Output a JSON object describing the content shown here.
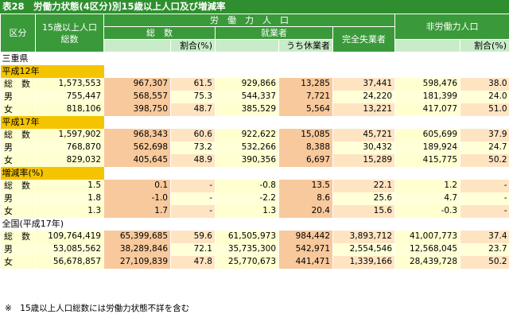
{
  "title": "表28　労働力状態(4区分)別15歳以上人口及び増減率",
  "headers": {
    "kubun": "区分",
    "pop15_line1": "15歳以上人口",
    "pop15_line2": "総数",
    "labor_force": "労　働　力　人　口",
    "total": "総　数",
    "ratio": "割合(%)",
    "employed": "就業者",
    "on_leave": "うち休業者",
    "unemployed": "完全失業者",
    "non_labor": "非労働力人口",
    "ratio2": "割合(%)"
  },
  "sections": [
    {
      "heading": "三重県",
      "groups": [
        {
          "badge": "平成12年",
          "rows": [
            {
              "label": "総　数",
              "pop": "1,573,553",
              "lf": "967,307",
              "lfr": "61.5",
              "emp": "929,866",
              "leave": "13,285",
              "unemp": "37,441",
              "nlf": "598,476",
              "nlfr": "38.0"
            },
            {
              "label": "男",
              "pop": "755,447",
              "lf": "568,557",
              "lfr": "75.3",
              "emp": "544,337",
              "leave": "7,721",
              "unemp": "24,220",
              "nlf": "181,399",
              "nlfr": "24.0"
            },
            {
              "label": "女",
              "pop": "818,106",
              "lf": "398,750",
              "lfr": "48.7",
              "emp": "385,529",
              "leave": "5,564",
              "unemp": "13,221",
              "nlf": "417,077",
              "nlfr": "51.0"
            }
          ]
        },
        {
          "badge": "平成17年",
          "rows": [
            {
              "label": "総　数",
              "pop": "1,597,902",
              "lf": "968,343",
              "lfr": "60.6",
              "emp": "922,622",
              "leave": "15,085",
              "unemp": "45,721",
              "nlf": "605,699",
              "nlfr": "37.9"
            },
            {
              "label": "男",
              "pop": "768,870",
              "lf": "562,698",
              "lfr": "73.2",
              "emp": "532,266",
              "leave": "8,388",
              "unemp": "30,432",
              "nlf": "189,924",
              "nlfr": "24.7"
            },
            {
              "label": "女",
              "pop": "829,032",
              "lf": "405,645",
              "lfr": "48.9",
              "emp": "390,356",
              "leave": "6,697",
              "unemp": "15,289",
              "nlf": "415,775",
              "nlfr": "50.2"
            }
          ]
        },
        {
          "badge": "増減率(%)",
          "rows": [
            {
              "label": "総　数",
              "pop": "1.5",
              "lf": "0.1",
              "lfr": "-",
              "emp": "-0.8",
              "leave": "13.5",
              "unemp": "22.1",
              "nlf": "1.2",
              "nlfr": "-"
            },
            {
              "label": "男",
              "pop": "1.8",
              "lf": "-1.0",
              "lfr": "-",
              "emp": "-2.2",
              "leave": "8.6",
              "unemp": "25.6",
              "nlf": "4.7",
              "nlfr": "-"
            },
            {
              "label": "女",
              "pop": "1.3",
              "lf": "1.7",
              "lfr": "-",
              "emp": "1.3",
              "leave": "20.4",
              "unemp": "15.6",
              "nlf": "-0.3",
              "nlfr": "-"
            }
          ]
        }
      ]
    },
    {
      "heading": "全国(平成17年)",
      "groups": [
        {
          "badge": "",
          "rows": [
            {
              "label": "総　数",
              "pop": "109,764,419",
              "lf": "65,399,685",
              "lfr": "59.6",
              "emp": "61,505,973",
              "leave": "984,442",
              "unemp": "3,893,712",
              "nlf": "41,007,773",
              "nlfr": "37.4"
            },
            {
              "label": "男",
              "pop": "53,085,562",
              "lf": "38,289,846",
              "lfr": "72.1",
              "emp": "35,735,300",
              "leave": "542,971",
              "unemp": "2,554,546",
              "nlf": "12,568,045",
              "nlfr": "23.7"
            },
            {
              "label": "女",
              "pop": "56,678,857",
              "lf": "27,109,839",
              "lfr": "47.8",
              "emp": "25,770,673",
              "leave": "441,471",
              "unemp": "1,339,166",
              "nlf": "28,439,728",
              "nlfr": "50.2"
            }
          ]
        }
      ]
    }
  ],
  "note": "※　15歳以上人口総数には労働力状態不詳を含む"
}
